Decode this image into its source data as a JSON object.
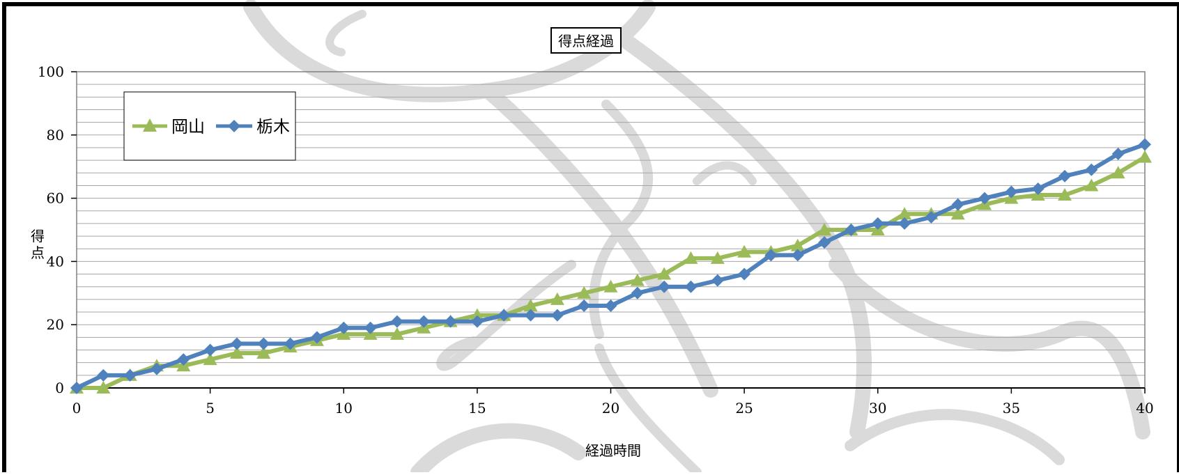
{
  "chart_data": {
    "type": "line",
    "title": "得点経過",
    "xlabel": "経過時間",
    "ylabel": "得点",
    "xlim": [
      0,
      40
    ],
    "ylim": [
      0,
      100
    ],
    "x_ticks": [
      "0",
      "5",
      "10",
      "15",
      "20",
      "25",
      "30",
      "35",
      "40"
    ],
    "y_ticks": [
      "0",
      "20",
      "40",
      "60",
      "80",
      "100"
    ],
    "grid": "horizontal minor every 4",
    "legend_position": "top-left",
    "x": [
      0,
      1,
      2,
      3,
      4,
      5,
      6,
      7,
      8,
      9,
      10,
      11,
      12,
      13,
      14,
      15,
      16,
      17,
      18,
      19,
      20,
      21,
      22,
      23,
      24,
      25,
      26,
      27,
      28,
      29,
      30,
      31,
      32,
      33,
      34,
      35,
      36,
      37,
      38,
      39,
      40
    ],
    "series": [
      {
        "name": "岡山",
        "color": "#9bbb59",
        "marker": "triangle",
        "values": [
          0,
          0,
          4,
          7,
          7,
          9,
          11,
          11,
          13,
          15,
          17,
          17,
          17,
          19,
          21,
          23,
          23,
          26,
          28,
          30,
          32,
          34,
          36,
          41,
          41,
          43,
          43,
          45,
          50,
          50,
          50,
          55,
          55,
          55,
          58,
          60,
          61,
          61,
          64,
          68,
          73
        ]
      },
      {
        "name": "栃木",
        "color": "#4f81bd",
        "marker": "diamond",
        "values": [
          0,
          4,
          4,
          6,
          9,
          12,
          14,
          14,
          14,
          16,
          19,
          19,
          21,
          21,
          21,
          21,
          23,
          23,
          23,
          26,
          26,
          30,
          32,
          32,
          34,
          36,
          42,
          42,
          46,
          50,
          52,
          52,
          54,
          58,
          60,
          62,
          63,
          67,
          69,
          74,
          77
        ]
      }
    ]
  }
}
